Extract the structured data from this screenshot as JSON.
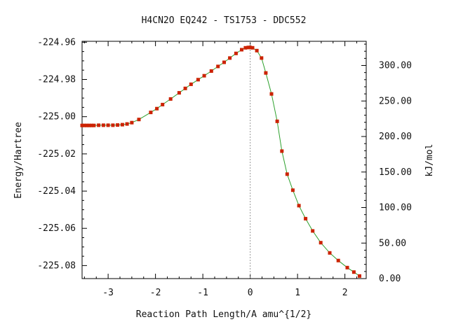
{
  "chart_data": {
    "type": "line",
    "title": "H4CN2O   EQ242 - TS1753 - DDC552",
    "xlabel": "Reaction Path Length/A amu^{1/2}",
    "ylabel": "Energy/Hartree",
    "y2label": "kJ/mol",
    "xlim": [
      -3.55,
      2.45
    ],
    "ylim": [
      -225.087,
      -224.9595
    ],
    "y2lim": [
      0.0,
      334.0
    ],
    "x_ticks": [
      -3,
      -2,
      -1,
      0,
      1,
      2
    ],
    "x_tick_labels": [
      "-3",
      "-2",
      "-1",
      "0",
      "1",
      "2"
    ],
    "y_ticks": [
      -224.96,
      -224.98,
      -225.0,
      -225.02,
      -225.04,
      -225.06,
      -225.08
    ],
    "y_tick_labels": [
      "-224.96",
      "-224.98",
      "-225.00",
      "-225.02",
      "-225.04",
      "-225.06",
      "-225.08"
    ],
    "y2_ticks": [
      0,
      50,
      100,
      150,
      200,
      250,
      300
    ],
    "y2_tick_labels": [
      "0.00",
      "50.00",
      "100.00",
      "150.00",
      "200.00",
      "250.00",
      "300.00"
    ],
    "grid": false,
    "reference_line_x": 0,
    "colors": {
      "line": "#2ca02c",
      "marker": "#cc2200",
      "axes": "#000000",
      "reference": "#999999"
    },
    "series": [
      {
        "x": [
          -3.55,
          -3.5,
          -3.45,
          -3.4,
          -3.35,
          -3.3,
          -3.2,
          -3.1,
          -3.0,
          -2.9,
          -2.8,
          -2.7,
          -2.6,
          -2.5,
          -2.35,
          -2.1,
          -1.97,
          -1.85,
          -1.68,
          -1.5,
          -1.37,
          -1.25,
          -1.1,
          -0.97,
          -0.82,
          -0.68,
          -0.55,
          -0.43,
          -0.3,
          -0.18,
          -0.1,
          -0.04,
          0.0,
          0.05,
          0.14,
          0.24,
          0.33,
          0.45,
          0.57,
          0.67,
          0.78,
          0.9,
          1.03,
          1.17,
          1.32,
          1.49,
          1.68,
          1.86,
          2.05,
          2.19,
          2.31
        ],
        "y": [
          -225.0047,
          -225.0047,
          -225.0047,
          -225.0047,
          -225.0047,
          -225.0047,
          -225.0046,
          -225.0046,
          -225.0046,
          -225.0046,
          -225.0045,
          -225.0043,
          -225.0039,
          -225.0032,
          -225.0015,
          -224.9977,
          -224.9957,
          -224.9935,
          -224.9905,
          -224.9872,
          -224.9848,
          -224.9826,
          -224.9801,
          -224.978,
          -224.9755,
          -224.973,
          -224.9708,
          -224.9685,
          -224.966,
          -224.964,
          -224.963,
          -224.9628,
          -224.9628,
          -224.963,
          -224.9645,
          -224.9685,
          -224.9765,
          -224.9878,
          -225.0025,
          -225.0185,
          -225.0309,
          -225.0395,
          -225.0478,
          -225.0548,
          -225.0614,
          -225.0677,
          -225.0732,
          -225.0773,
          -225.0811,
          -225.0835,
          -225.0856
        ]
      }
    ]
  }
}
